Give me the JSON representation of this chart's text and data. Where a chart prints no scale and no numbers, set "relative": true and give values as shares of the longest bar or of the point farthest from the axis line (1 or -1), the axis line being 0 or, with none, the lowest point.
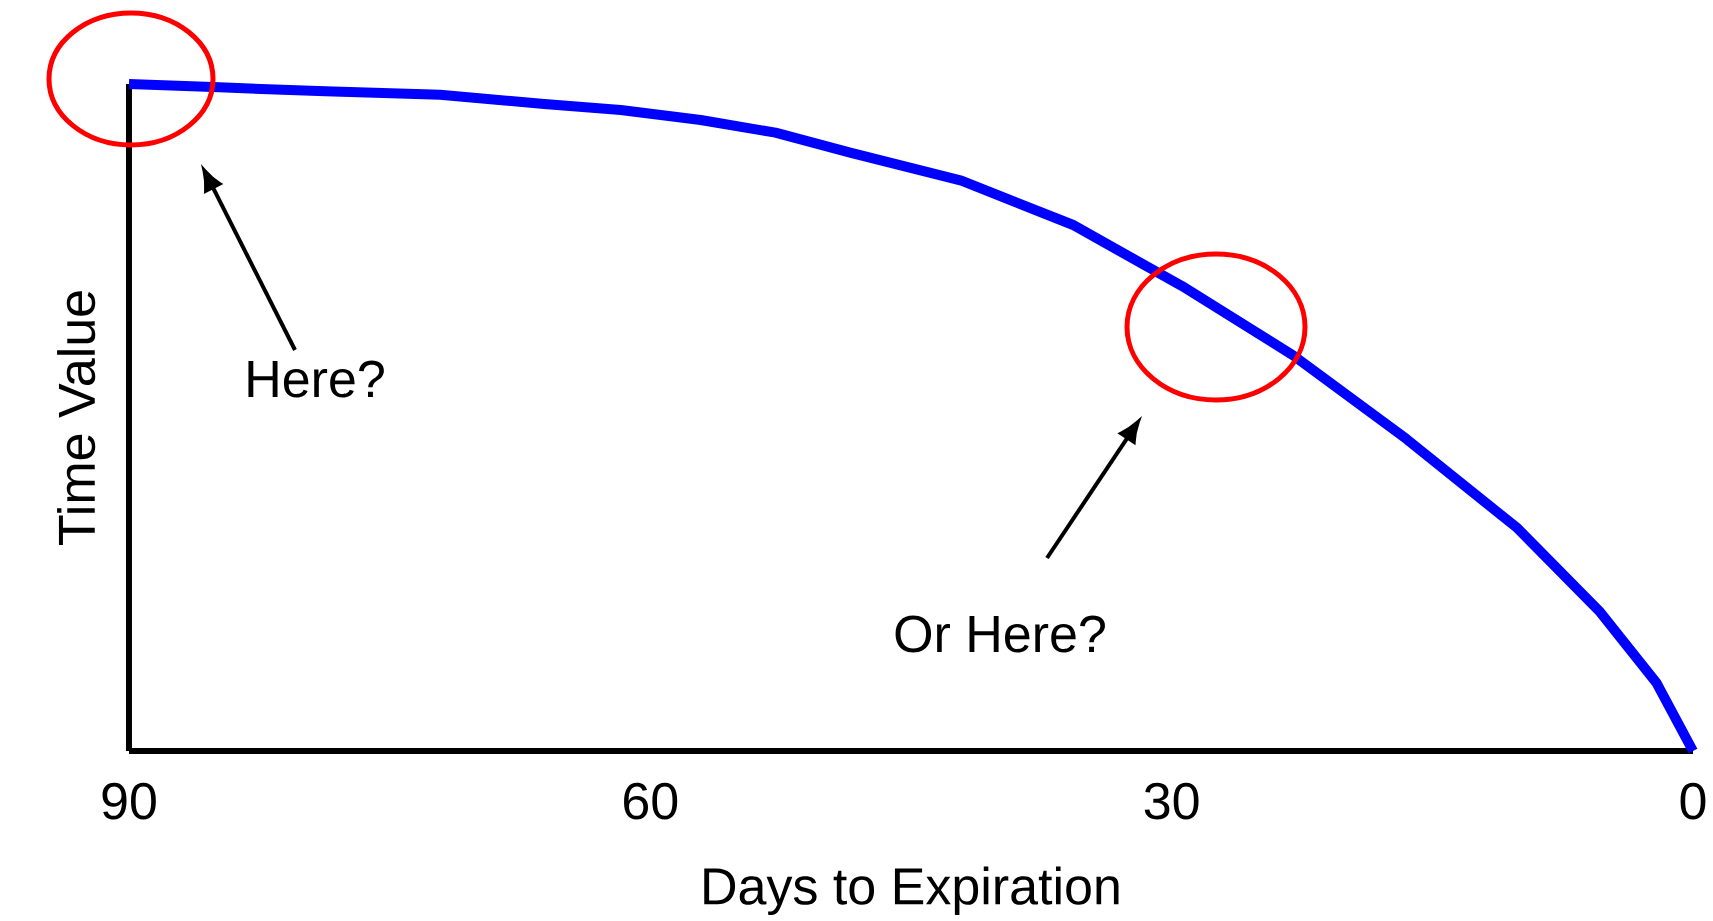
{
  "chart_data": {
    "type": "line",
    "xlabel": "Days to Expiration",
    "ylabel": "Time Value",
    "relative": true,
    "xlim": [
      90,
      0
    ],
    "xticks": [
      90,
      60,
      30,
      0
    ],
    "marker": "none",
    "line_style": "solid",
    "series": [
      {
        "color": "#0000ff",
        "x": [
          90,
          84.8,
          78.7,
          72.1,
          66.1,
          61.7,
          57.1,
          52.8,
          48.5,
          42.1,
          35.7,
          29.4,
          23.0,
          16.5,
          10.1,
          5.4,
          2.1,
          0
        ],
        "values": [
          1.0,
          0.995,
          0.989,
          0.984,
          0.97,
          0.961,
          0.946,
          0.927,
          0.897,
          0.855,
          0.789,
          0.697,
          0.593,
          0.468,
          0.334,
          0.21,
          0.102,
          0.0
        ]
      }
    ],
    "annotations": [
      "Here?",
      "Or Here?"
    ]
  }
}
